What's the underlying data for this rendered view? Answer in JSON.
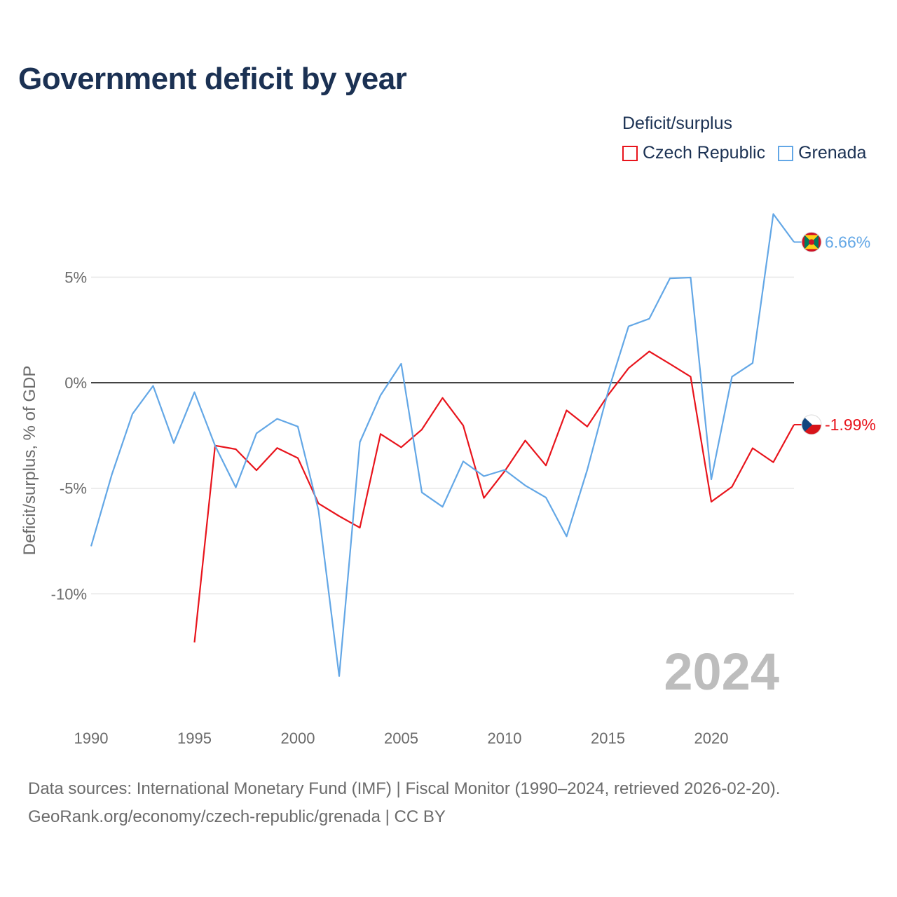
{
  "title": "Government deficit by year",
  "legend": {
    "title": "Deficit/surplus",
    "items": [
      {
        "label": "Czech Republic",
        "color": "#e8141c"
      },
      {
        "label": "Grenada",
        "color": "#63a7e6"
      }
    ]
  },
  "source": {
    "line1": "Data sources: International Monetary Fund (IMF) | Fiscal Monitor (1990–2024, retrieved 2026-02-20).",
    "line2": "GeoRank.org/economy/czech-republic/grenada | CC BY"
  },
  "chart_data": {
    "type": "line",
    "title": "Government deficit by year",
    "ylabel": "Deficit/surplus, % of GDP",
    "xlabel": "",
    "xlim": [
      1990,
      2024
    ],
    "ylim": [
      -15.4,
      8.5
    ],
    "x_ticks": [
      1990,
      1995,
      2000,
      2005,
      2010,
      2015,
      2020
    ],
    "x_tick_labels": [
      "1990",
      "1995",
      "2000",
      "2005",
      "2010",
      "2015",
      "2020"
    ],
    "y_ticks": [
      5,
      0,
      -5,
      -10
    ],
    "y_tick_labels": [
      "5%",
      "0%",
      "-5%",
      "-10%"
    ],
    "zero_line": true,
    "grid": true,
    "watermark_year": "2024",
    "series": [
      {
        "name": "Czech Republic",
        "color": "#e8141c",
        "end_label": "-1.99%",
        "x": [
          1995,
          1996,
          1997,
          1998,
          1999,
          2000,
          2001,
          2002,
          2003,
          2004,
          2005,
          2006,
          2007,
          2008,
          2009,
          2010,
          2011,
          2012,
          2013,
          2014,
          2015,
          2016,
          2017,
          2018,
          2019,
          2020,
          2021,
          2022,
          2023,
          2024
        ],
        "values": [
          -12.3,
          -2.98,
          -3.15,
          -4.15,
          -3.09,
          -3.57,
          -5.72,
          -6.32,
          -6.87,
          -2.43,
          -3.06,
          -2.22,
          -0.72,
          -2.03,
          -5.46,
          -4.2,
          -2.74,
          -3.92,
          -1.31,
          -2.08,
          -0.6,
          0.69,
          1.48,
          0.89,
          0.28,
          -5.64,
          -4.93,
          -3.1,
          -3.77,
          -1.99
        ]
      },
      {
        "name": "Grenada",
        "color": "#63a7e6",
        "end_label": "6.66%",
        "x": [
          1990,
          1991,
          1992,
          1993,
          1994,
          1995,
          1996,
          1997,
          1998,
          1999,
          2000,
          2001,
          2002,
          2003,
          2004,
          2005,
          2006,
          2007,
          2008,
          2009,
          2010,
          2011,
          2012,
          2013,
          2014,
          2015,
          2016,
          2017,
          2018,
          2019,
          2020,
          2021,
          2022,
          2023,
          2024
        ],
        "values": [
          -7.75,
          -4.36,
          -1.48,
          -0.15,
          -2.86,
          -0.45,
          -2.99,
          -4.96,
          -2.4,
          -1.71,
          -2.08,
          -6.05,
          -13.9,
          -2.82,
          -0.6,
          0.9,
          -5.2,
          -5.88,
          -3.73,
          -4.43,
          -4.13,
          -4.87,
          -5.44,
          -7.28,
          -4.13,
          -0.45,
          2.67,
          3.03,
          4.94,
          4.98,
          -4.58,
          0.28,
          0.93,
          7.99,
          6.66
        ]
      }
    ]
  }
}
